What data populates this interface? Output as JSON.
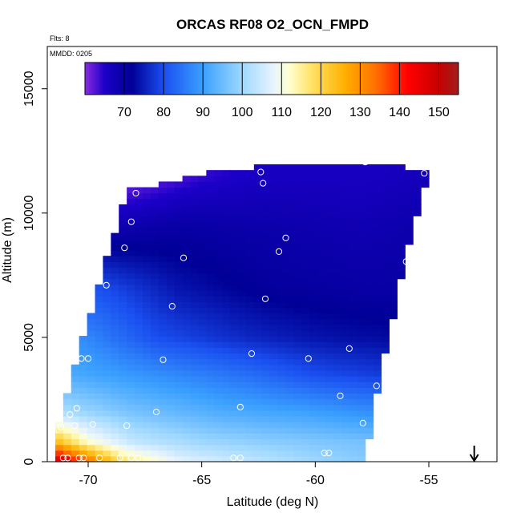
{
  "chart_data": {
    "type": "heatmap",
    "title": "ORCAS RF08 O2_OCN_FMPD",
    "annotations": {
      "flights": "Flts: 8",
      "date": "MMDD: 0205"
    },
    "xlabel": "Latitude (deg N)",
    "ylabel": "Altitude (m)",
    "xlim": [
      -71.8,
      -52.0
    ],
    "ylim": [
      0,
      16700
    ],
    "x_ticks": [
      -70,
      -65,
      -60,
      -55
    ],
    "x_tick_labels": [
      "-70",
      "-65",
      "-60",
      "-55"
    ],
    "y_ticks": [
      0,
      5000,
      10000,
      15000
    ],
    "y_tick_labels": [
      "0",
      "5000",
      "10000",
      "15000"
    ],
    "colorbar": {
      "range": [
        60,
        155
      ],
      "ticks": [
        70,
        80,
        90,
        100,
        110,
        120,
        130,
        140,
        150
      ],
      "tick_labels": [
        "70",
        "80",
        "90",
        "100",
        "110",
        "120",
        "130",
        "140",
        "150"
      ],
      "stops": [
        {
          "v": 60,
          "c": "#8a2be2"
        },
        {
          "v": 65,
          "c": "#1c00c8"
        },
        {
          "v": 72,
          "c": "#000096"
        },
        {
          "v": 80,
          "c": "#1a4ff0"
        },
        {
          "v": 90,
          "c": "#3aa0ff"
        },
        {
          "v": 100,
          "c": "#9fd8ff"
        },
        {
          "v": 108,
          "c": "#e8f4ff"
        },
        {
          "v": 112,
          "c": "#ffffd0"
        },
        {
          "v": 118,
          "c": "#ffe060"
        },
        {
          "v": 126,
          "c": "#ffb000"
        },
        {
          "v": 134,
          "c": "#ff7000"
        },
        {
          "v": 142,
          "c": "#ff0000"
        },
        {
          "v": 150,
          "c": "#c80000"
        },
        {
          "v": 155,
          "c": "#a01e1e"
        }
      ]
    },
    "field_domain": {
      "top_edge": [
        [
          -68.3,
          10900
        ],
        [
          -66.5,
          11200
        ],
        [
          -64.5,
          11700
        ],
        [
          -62.0,
          11900
        ],
        [
          -60.0,
          12000
        ],
        [
          -57.5,
          12000
        ],
        [
          -55.0,
          11700
        ]
      ],
      "left_edge": [
        [
          -68.3,
          10900
        ],
        [
          -69.5,
          7200
        ],
        [
          -70.5,
          4200
        ],
        [
          -71.2,
          2000
        ],
        [
          -71.5,
          0
        ]
      ],
      "right_edge": [
        [
          -55.0,
          11700
        ],
        [
          -56.0,
          8200
        ],
        [
          -57.0,
          4000
        ],
        [
          -57.5,
          1700
        ],
        [
          -57.8,
          0
        ]
      ]
    },
    "value_model": {
      "description": "values estimated from colors: ~150 near surface at -71, ~110 near surface center, ~95 mid-lower, ~70-75 in upper troposphere, ~62 at top-left corner",
      "levels": [
        {
          "alt": 0,
          "at_lat": [
            [
              -71.5,
              152
            ],
            [
              -70.0,
              135
            ],
            [
              -68.5,
              118
            ],
            [
              -66.0,
              108
            ],
            [
              -63.0,
              104
            ],
            [
              -60.0,
              100
            ],
            [
              -58.0,
              98
            ]
          ]
        },
        {
          "alt": 800,
          "at_lat": [
            [
              -71.5,
              125
            ],
            [
              -70.0,
              112
            ],
            [
              -68.0,
              104
            ],
            [
              -65.0,
              100
            ],
            [
              -62.0,
              98
            ],
            [
              -58.0,
              96
            ]
          ]
        },
        {
          "alt": 2000,
          "at_lat": [
            [
              -71.5,
              102
            ],
            [
              -68.0,
              96
            ],
            [
              -64.0,
              92
            ],
            [
              -60.0,
              90
            ],
            [
              -57.5,
              88
            ]
          ]
        },
        {
          "alt": 3500,
          "at_lat": [
            [
              -71.0,
              92
            ],
            [
              -67.0,
              88
            ],
            [
              -63.0,
              84
            ],
            [
              -60.0,
              80
            ],
            [
              -57.0,
              78
            ]
          ]
        },
        {
          "alt": 5000,
          "at_lat": [
            [
              -70.5,
              88
            ],
            [
              -67.0,
              80
            ],
            [
              -63.0,
              76
            ],
            [
              -60.0,
              74
            ],
            [
              -57.0,
              73
            ]
          ]
        },
        {
          "alt": 7000,
          "at_lat": [
            [
              -69.5,
              80
            ],
            [
              -66.0,
              74
            ],
            [
              -62.0,
              71
            ],
            [
              -58.0,
              70
            ],
            [
              -56.0,
              70
            ]
          ]
        },
        {
          "alt": 9500,
          "at_lat": [
            [
              -69.0,
              68
            ],
            [
              -66.0,
              70
            ],
            [
              -62.0,
              69
            ],
            [
              -58.0,
              68
            ],
            [
              -55.5,
              69
            ]
          ]
        },
        {
          "alt": 11500,
          "at_lat": [
            [
              -68.3,
              60
            ],
            [
              -65.0,
              64
            ],
            [
              -62.0,
              66
            ],
            [
              -58.0,
              66
            ],
            [
              -55.0,
              67
            ]
          ]
        }
      ]
    },
    "samples": [
      {
        "lat": -57.9,
        "alt": 12150
      },
      {
        "lat": -57.8,
        "alt": 12050
      },
      {
        "lat": -62.4,
        "alt": 11650
      },
      {
        "lat": -62.3,
        "alt": 11200
      },
      {
        "lat": -55.2,
        "alt": 11600
      },
      {
        "lat": -67.9,
        "alt": 10800
      },
      {
        "lat": -68.1,
        "alt": 9650
      },
      {
        "lat": -61.3,
        "alt": 9000
      },
      {
        "lat": -68.4,
        "alt": 8600
      },
      {
        "lat": -61.6,
        "alt": 8450
      },
      {
        "lat": -65.8,
        "alt": 8200
      },
      {
        "lat": -56.0,
        "alt": 8050
      },
      {
        "lat": -69.2,
        "alt": 7100
      },
      {
        "lat": -62.2,
        "alt": 6550
      },
      {
        "lat": -66.3,
        "alt": 6250
      },
      {
        "lat": -56.5,
        "alt": 4900
      },
      {
        "lat": -58.5,
        "alt": 4550
      },
      {
        "lat": -62.8,
        "alt": 4350
      },
      {
        "lat": -70.3,
        "alt": 4150
      },
      {
        "lat": -70.0,
        "alt": 4150
      },
      {
        "lat": -66.7,
        "alt": 4100
      },
      {
        "lat": -60.3,
        "alt": 4150
      },
      {
        "lat": -56.9,
        "alt": 3300
      },
      {
        "lat": -57.3,
        "alt": 3050
      },
      {
        "lat": -58.9,
        "alt": 2650
      },
      {
        "lat": -63.3,
        "alt": 2200
      },
      {
        "lat": -70.5,
        "alt": 2150
      },
      {
        "lat": -67.0,
        "alt": 2000
      },
      {
        "lat": -70.8,
        "alt": 1900
      },
      {
        "lat": -57.2,
        "alt": 1750
      },
      {
        "lat": -57.9,
        "alt": 1550
      },
      {
        "lat": -69.8,
        "alt": 1500
      },
      {
        "lat": -70.6,
        "alt": 1450
      },
      {
        "lat": -68.3,
        "alt": 1450
      },
      {
        "lat": -71.2,
        "alt": 1400
      },
      {
        "lat": -71.1,
        "alt": 150
      },
      {
        "lat": -70.9,
        "alt": 150
      },
      {
        "lat": -70.4,
        "alt": 150
      },
      {
        "lat": -70.2,
        "alt": 150
      },
      {
        "lat": -69.5,
        "alt": 150
      },
      {
        "lat": -68.6,
        "alt": 150
      },
      {
        "lat": -68.1,
        "alt": 150
      },
      {
        "lat": -67.8,
        "alt": 150
      },
      {
        "lat": -63.6,
        "alt": 150
      },
      {
        "lat": -63.3,
        "alt": 150
      },
      {
        "lat": -59.6,
        "alt": 350
      },
      {
        "lat": -59.4,
        "alt": 350
      },
      {
        "lat": -57.6,
        "alt": 350
      }
    ],
    "arrow": {
      "lat": -53.0,
      "direction": "down"
    }
  }
}
